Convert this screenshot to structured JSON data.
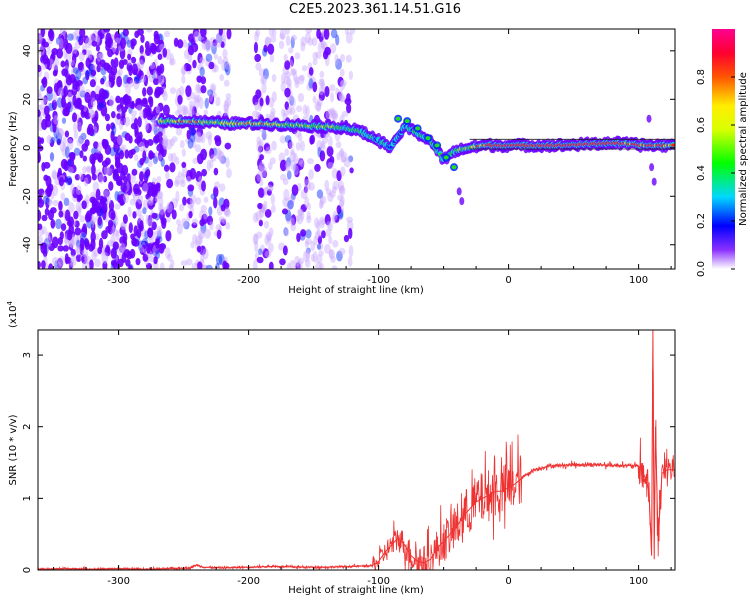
{
  "title": "C2E5.2023.361.14.51.G16",
  "colors": {
    "snr_line": "#ee3333",
    "purple": "#6a00ff",
    "blue": "#0022ff",
    "cyan": "#00e0e0",
    "green": "#22dd22",
    "yellow": "#e8e800",
    "red": "#ff2020"
  },
  "chart_data": [
    {
      "type": "heatmap",
      "title": "",
      "xlabel": "Height of straight line (km)",
      "ylabel": "Frequency (Hz)",
      "xlim": [
        -362,
        128
      ],
      "ylim": [
        -50,
        49
      ],
      "x_ticks": [
        -300,
        -200,
        -100,
        0,
        100
      ],
      "y_ticks": [
        -40,
        -20,
        0,
        20,
        40
      ],
      "colorbar": {
        "label": "Normalized spectral amplitude",
        "range": [
          0,
          1
        ],
        "ticks": [
          "0.0",
          "0.2",
          "0.4",
          "0.6",
          "0.8"
        ],
        "tick_values": [
          0.0,
          0.2,
          0.4,
          0.6,
          0.8
        ]
      },
      "ridge": [
        {
          "x": -268,
          "y": 11,
          "a": 0.6
        },
        {
          "x": -250,
          "y": 11,
          "a": 0.75
        },
        {
          "x": -230,
          "y": 10.5,
          "a": 0.6
        },
        {
          "x": -210,
          "y": 10,
          "a": 0.7
        },
        {
          "x": -190,
          "y": 10,
          "a": 0.7
        },
        {
          "x": -170,
          "y": 9.5,
          "a": 0.6
        },
        {
          "x": -150,
          "y": 9,
          "a": 0.6
        },
        {
          "x": -130,
          "y": 8.5,
          "a": 0.55
        },
        {
          "x": -115,
          "y": 7,
          "a": 0.5
        },
        {
          "x": -100,
          "y": 3,
          "a": 0.45
        },
        {
          "x": -90,
          "y": 0,
          "a": 0.4
        },
        {
          "x": -80,
          "y": 9,
          "a": 0.45
        },
        {
          "x": -70,
          "y": 6,
          "a": 0.5
        },
        {
          "x": -60,
          "y": 3,
          "a": 0.5
        },
        {
          "x": -50,
          "y": -5,
          "a": 0.5
        },
        {
          "x": -40,
          "y": -1,
          "a": 0.55
        },
        {
          "x": -20,
          "y": 1,
          "a": 0.75
        },
        {
          "x": 0,
          "y": 1,
          "a": 0.8
        },
        {
          "x": 40,
          "y": 1,
          "a": 0.85
        },
        {
          "x": 80,
          "y": 2,
          "a": 0.8
        },
        {
          "x": 105,
          "y": 1,
          "a": 0.75
        },
        {
          "x": 128,
          "y": 1,
          "a": 0.7
        }
      ]
    },
    {
      "type": "line",
      "title": "",
      "xlabel": "Height of straight line (km)",
      "ylabel": "SNR (10 * v/v)",
      "y_scale_label": "(x10",
      "y_scale_exponent": "4",
      "y_scale_suffix": ")",
      "xlim": [
        -362,
        128
      ],
      "ylim": [
        0,
        3.35
      ],
      "x_ticks": [
        -300,
        -200,
        -100,
        0,
        100
      ],
      "y_ticks": [
        0,
        1,
        2,
        3
      ],
      "series": [
        {
          "x": [
            -362,
            -340,
            -320,
            -300,
            -280,
            -260,
            -245,
            -240,
            -235,
            -220,
            -200,
            -180,
            -160,
            -140,
            -120,
            -105,
            -100,
            -95,
            -90,
            -85,
            -80,
            -75,
            -70,
            -65,
            -60,
            -55,
            -50,
            -45,
            -40,
            -35,
            -30,
            -25,
            -20,
            -15,
            -10,
            -5,
            0,
            5,
            10,
            15,
            20,
            25,
            30,
            40,
            50,
            60,
            70,
            80,
            90,
            100,
            105,
            108,
            110,
            111,
            112,
            113,
            115,
            118,
            122,
            128
          ],
          "y": [
            0.01,
            0.02,
            0.01,
            0.02,
            0.01,
            0.02,
            0.03,
            0.07,
            0.04,
            0.03,
            0.04,
            0.05,
            0.04,
            0.04,
            0.05,
            0.06,
            0.12,
            0.25,
            0.35,
            0.45,
            0.35,
            0.2,
            0.12,
            0.1,
            0.15,
            0.3,
            0.4,
            0.5,
            0.6,
            0.75,
            0.85,
            0.95,
            1.0,
            1.05,
            1.1,
            1.1,
            1.15,
            1.2,
            1.28,
            1.35,
            1.4,
            1.42,
            1.45,
            1.46,
            1.47,
            1.47,
            1.47,
            1.46,
            1.46,
            1.45,
            1.3,
            1.1,
            0.2,
            3.35,
            0.15,
            2.0,
            0.4,
            1.35,
            1.4,
            1.4
          ]
        }
      ]
    }
  ]
}
